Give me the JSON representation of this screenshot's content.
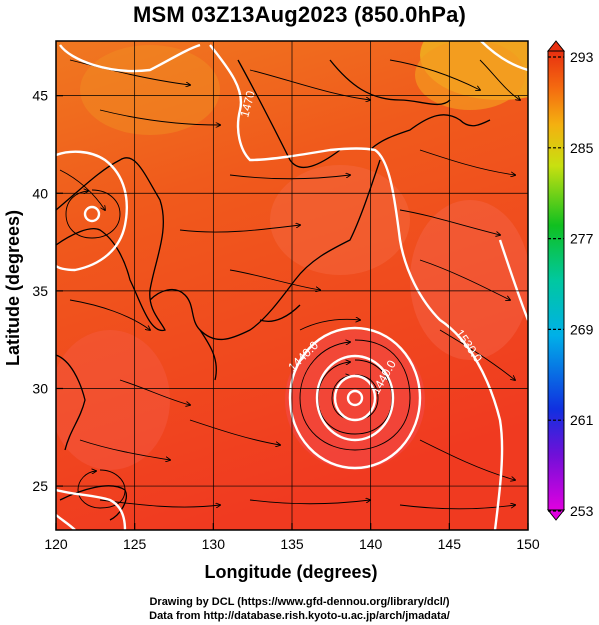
{
  "title": "MSM 03Z13Aug2023 (850.0hPa)",
  "x_label": "Longitude (degrees)",
  "y_label": "Latitude  (degrees)",
  "x_ticks": [
    120,
    125,
    130,
    135,
    140,
    145,
    150
  ],
  "y_ticks": [
    25,
    30,
    35,
    40,
    45
  ],
  "colorbar_ticks": [
    293,
    285,
    277,
    269,
    261,
    253
  ],
  "contour_labels": [
    "1440.0",
    "1440.0",
    "1530.0",
    "1470"
  ],
  "credits": {
    "line1": "Drawing by DCL (https://www.gfd-dennou.org/library/dcl/)",
    "line2": "Data from http://database.rish.kyoto-u.ac.jp/arch/jmadata/"
  },
  "colors": {
    "hot": "#f04a1c",
    "warm": "#f47a1c",
    "pale": "#f45a48",
    "contour": "#ffffff"
  }
}
